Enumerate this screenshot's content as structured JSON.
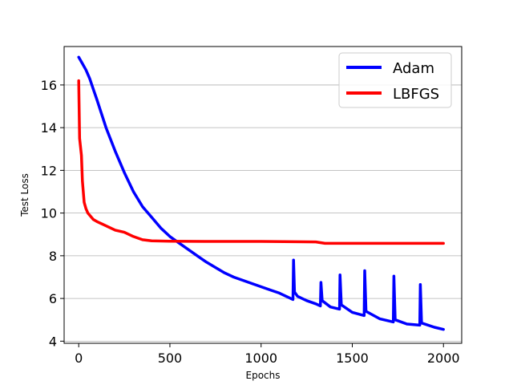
{
  "chart_data": {
    "type": "line",
    "title": "",
    "xlabel": "Epochs",
    "ylabel": "Test Loss",
    "xlim": [
      -80,
      2100
    ],
    "ylim": [
      3.9,
      17.8
    ],
    "xticks": [
      0,
      500,
      1000,
      1500,
      2000
    ],
    "yticks": [
      4,
      6,
      8,
      10,
      12,
      14,
      16
    ],
    "xtick_labels": [
      "0",
      "500",
      "1000",
      "1500",
      "2000"
    ],
    "ytick_labels": [
      "4",
      "6",
      "8",
      "10",
      "12",
      "14",
      "16"
    ],
    "grid": "horizontal",
    "legend_position": "top-right",
    "series": [
      {
        "name": "Adam",
        "color": "#0000ff",
        "points": [
          [
            0,
            17.3
          ],
          [
            20,
            17.0
          ],
          [
            40,
            16.7
          ],
          [
            60,
            16.3
          ],
          [
            80,
            15.8
          ],
          [
            100,
            15.3
          ],
          [
            150,
            14.0
          ],
          [
            200,
            12.9
          ],
          [
            250,
            11.9
          ],
          [
            300,
            11.0
          ],
          [
            350,
            10.3
          ],
          [
            400,
            9.8
          ],
          [
            450,
            9.3
          ],
          [
            500,
            8.9
          ],
          [
            550,
            8.6
          ],
          [
            600,
            8.3
          ],
          [
            650,
            8.0
          ],
          [
            700,
            7.7
          ],
          [
            750,
            7.45
          ],
          [
            800,
            7.2
          ],
          [
            850,
            7.0
          ],
          [
            900,
            6.85
          ],
          [
            950,
            6.7
          ],
          [
            1000,
            6.55
          ],
          [
            1050,
            6.4
          ],
          [
            1100,
            6.25
          ],
          [
            1150,
            6.05
          ],
          [
            1175,
            5.95
          ],
          [
            1178,
            7.8
          ],
          [
            1183,
            6.3
          ],
          [
            1200,
            6.1
          ],
          [
            1250,
            5.9
          ],
          [
            1300,
            5.75
          ],
          [
            1325,
            5.65
          ],
          [
            1328,
            6.75
          ],
          [
            1335,
            5.9
          ],
          [
            1380,
            5.6
          ],
          [
            1430,
            5.5
          ],
          [
            1433,
            7.1
          ],
          [
            1440,
            5.7
          ],
          [
            1500,
            5.35
          ],
          [
            1565,
            5.2
          ],
          [
            1568,
            7.3
          ],
          [
            1575,
            5.4
          ],
          [
            1650,
            5.05
          ],
          [
            1725,
            4.9
          ],
          [
            1728,
            7.05
          ],
          [
            1735,
            5.0
          ],
          [
            1800,
            4.8
          ],
          [
            1870,
            4.75
          ],
          [
            1873,
            6.65
          ],
          [
            1880,
            4.85
          ],
          [
            1950,
            4.65
          ],
          [
            2000,
            4.55
          ]
        ]
      },
      {
        "name": "LBFGS",
        "color": "#ff0000",
        "points": [
          [
            0,
            16.2
          ],
          [
            5,
            13.5
          ],
          [
            15,
            12.7
          ],
          [
            20,
            11.5
          ],
          [
            30,
            10.5
          ],
          [
            40,
            10.2
          ],
          [
            50,
            10.0
          ],
          [
            80,
            9.7
          ],
          [
            100,
            9.6
          ],
          [
            150,
            9.4
          ],
          [
            200,
            9.2
          ],
          [
            250,
            9.1
          ],
          [
            300,
            8.9
          ],
          [
            350,
            8.75
          ],
          [
            400,
            8.7
          ],
          [
            500,
            8.68
          ],
          [
            700,
            8.67
          ],
          [
            1000,
            8.67
          ],
          [
            1300,
            8.65
          ],
          [
            1350,
            8.58
          ],
          [
            1500,
            8.58
          ],
          [
            2000,
            8.58
          ]
        ]
      }
    ]
  }
}
